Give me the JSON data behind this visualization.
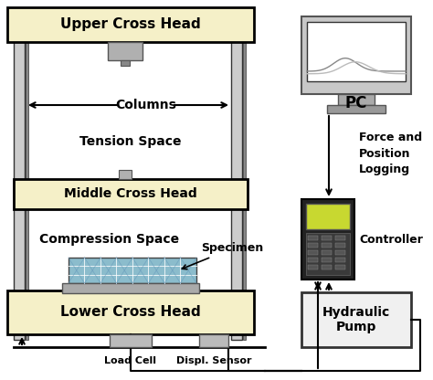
{
  "bg_color": "#ffffff",
  "cross_head_fill": "#f5f0c8",
  "cross_head_edge": "#000000",
  "labels": {
    "upper_cross_head": "Upper Cross Head",
    "middle_cross_head": "Middle Cross Head",
    "lower_cross_head": "Lower Cross Head",
    "tension_space": "Tension Space",
    "compression_space": "Compression Space",
    "columns": "Columns",
    "specimen": "Specimen",
    "load_cell": "Load Cell",
    "displ_sensor": "Displ. Sensor",
    "pc": "PC",
    "force_logging": "Force and\nPosition\nLogging",
    "controller": "Controller",
    "hydraulic_pump": "Hydraulic\nPump"
  },
  "figsize": [
    4.74,
    4.16
  ],
  "dpi": 100
}
